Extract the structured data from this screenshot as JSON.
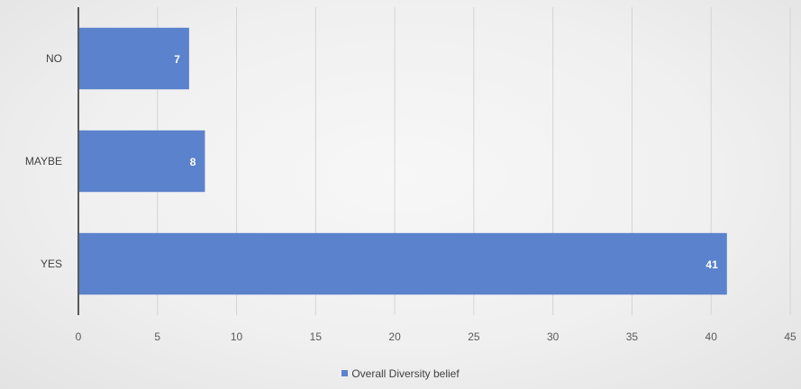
{
  "chart_data": {
    "type": "bar",
    "orientation": "horizontal",
    "categories": [
      "NO",
      "MAYBE",
      "YES"
    ],
    "series": [
      {
        "name": "Overall Diversity belief",
        "values": [
          7,
          8,
          41
        ],
        "color": "#5b82cc"
      }
    ],
    "data_labels": [
      "7",
      "8",
      "41"
    ],
    "xlim": [
      0,
      45
    ],
    "x_ticks": [
      0,
      5,
      10,
      15,
      20,
      25,
      30,
      35,
      40,
      45
    ],
    "grid": "vertical",
    "legend_position": "bottom"
  }
}
